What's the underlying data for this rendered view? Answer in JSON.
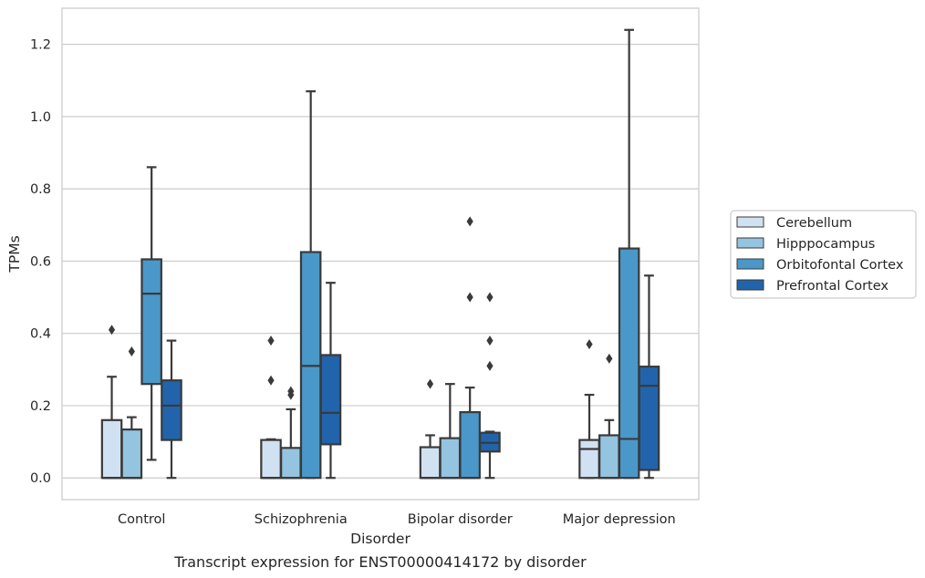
{
  "caption": "Transcript expression for ENST00000414172 by disorder",
  "chart_data": {
    "type": "box",
    "title": "",
    "xlabel": "Disorder",
    "ylabel": "TPMs",
    "ylim": [
      -0.06,
      1.3
    ],
    "yticks": [
      0.0,
      0.2,
      0.4,
      0.6,
      0.8,
      1.0,
      1.2
    ],
    "ytick_labels": [
      "0.0",
      "0.2",
      "0.4",
      "0.6",
      "0.8",
      "1.0",
      "1.2"
    ],
    "grid": "horizontal",
    "legend_position": "right",
    "categories": [
      "Control",
      "Schizophrenia",
      "Bipolar disorder",
      "Major depression"
    ],
    "series": [
      {
        "name": "Cerebellum",
        "color": "#d0e1f2",
        "boxes": [
          {
            "q1": 0.0,
            "median": 0.0,
            "q3": 0.16,
            "whisker_low": 0.0,
            "whisker_high": 0.28,
            "outliers": [
              0.41
            ]
          },
          {
            "q1": 0.0,
            "median": 0.0,
            "q3": 0.105,
            "whisker_low": 0.0,
            "whisker_high": 0.107,
            "outliers": [
              0.38,
              0.27
            ]
          },
          {
            "q1": 0.0,
            "median": 0.0,
            "q3": 0.085,
            "whisker_low": 0.0,
            "whisker_high": 0.118,
            "outliers": [
              0.26
            ]
          },
          {
            "q1": 0.0,
            "median": 0.08,
            "q3": 0.105,
            "whisker_low": 0.0,
            "whisker_high": 0.23,
            "outliers": [
              0.37
            ]
          }
        ]
      },
      {
        "name": "Hipppocampus",
        "color": "#94c4df",
        "boxes": [
          {
            "q1": 0.0,
            "median": 0.0,
            "q3": 0.134,
            "whisker_low": 0.0,
            "whisker_high": 0.168,
            "outliers": [
              0.35
            ]
          },
          {
            "q1": 0.0,
            "median": 0.0,
            "q3": 0.083,
            "whisker_low": 0.0,
            "whisker_high": 0.19,
            "outliers": [
              0.24,
              0.23
            ]
          },
          {
            "q1": 0.0,
            "median": 0.0,
            "q3": 0.11,
            "whisker_low": 0.0,
            "whisker_high": 0.26,
            "outliers": []
          },
          {
            "q1": 0.0,
            "median": 0.0,
            "q3": 0.118,
            "whisker_low": 0.0,
            "whisker_high": 0.16,
            "outliers": [
              0.33
            ]
          }
        ]
      },
      {
        "name": "Orbitofontal Cortex",
        "color": "#4a98c9",
        "boxes": [
          {
            "q1": 0.26,
            "median": 0.51,
            "q3": 0.605,
            "whisker_low": 0.05,
            "whisker_high": 0.86,
            "outliers": []
          },
          {
            "q1": 0.0,
            "median": 0.31,
            "q3": 0.625,
            "whisker_low": 0.0,
            "whisker_high": 1.07,
            "outliers": []
          },
          {
            "q1": 0.0,
            "median": 0.0,
            "q3": 0.182,
            "whisker_low": 0.0,
            "whisker_high": 0.25,
            "outliers": [
              0.71,
              0.5
            ]
          },
          {
            "q1": 0.0,
            "median": 0.108,
            "q3": 0.635,
            "whisker_low": 0.0,
            "whisker_high": 1.24,
            "outliers": []
          }
        ]
      },
      {
        "name": "Prefrontal Cortex",
        "color": "#2164ab",
        "boxes": [
          {
            "q1": 0.105,
            "median": 0.2,
            "q3": 0.27,
            "whisker_low": 0.0,
            "whisker_high": 0.38,
            "outliers": []
          },
          {
            "q1": 0.093,
            "median": 0.18,
            "q3": 0.34,
            "whisker_low": 0.0,
            "whisker_high": 0.54,
            "outliers": []
          },
          {
            "q1": 0.073,
            "median": 0.097,
            "q3": 0.125,
            "whisker_low": 0.0,
            "whisker_high": 0.128,
            "outliers": [
              0.5,
              0.38,
              0.31
            ]
          },
          {
            "q1": 0.022,
            "median": 0.255,
            "q3": 0.308,
            "whisker_low": 0.0,
            "whisker_high": 0.56,
            "outliers": []
          }
        ]
      }
    ]
  }
}
